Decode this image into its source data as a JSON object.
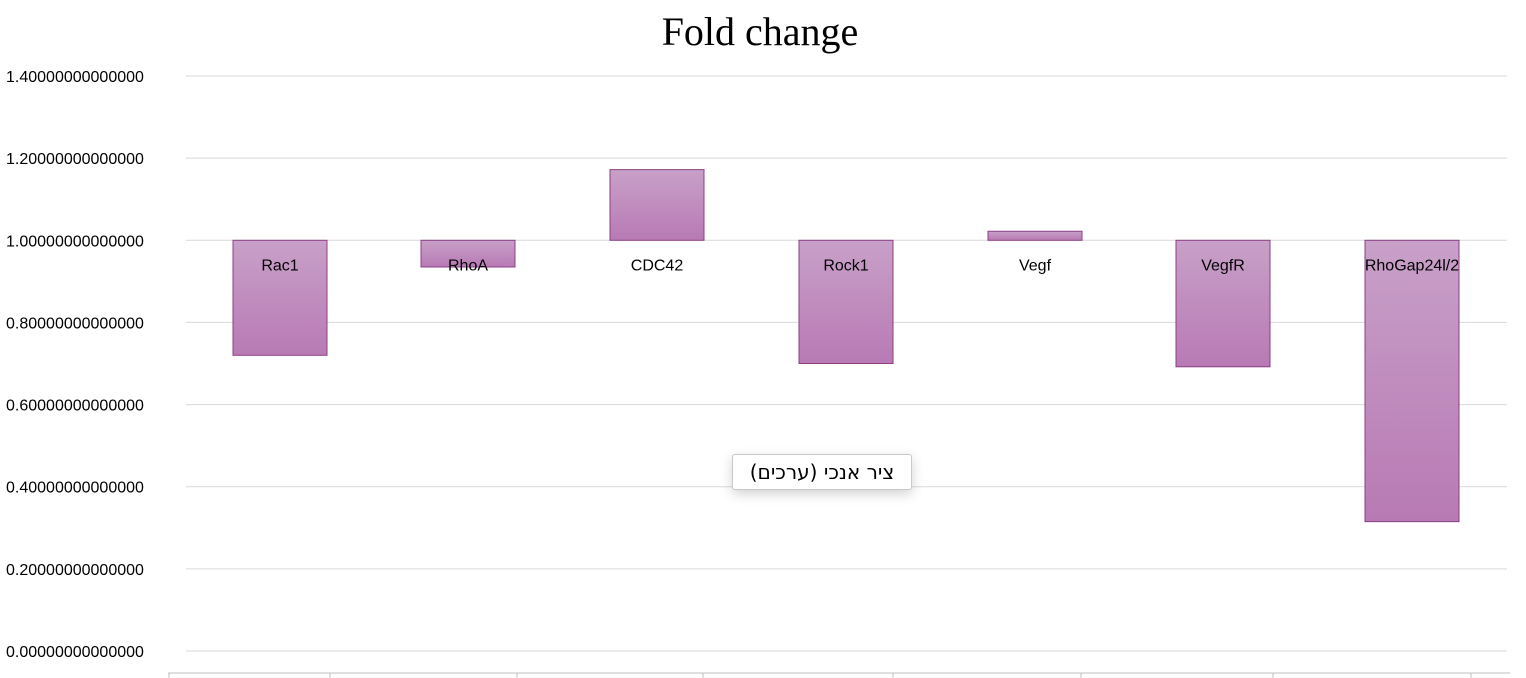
{
  "chart_data": {
    "type": "bar",
    "title": "Fold change",
    "categories": [
      "Rac1",
      "RhoA",
      "CDC42",
      "Rock1",
      "Vegf",
      "VegfR",
      "RhoGap24l/2"
    ],
    "values": [
      0.72,
      0.935,
      1.172,
      0.7,
      1.022,
      0.692,
      0.315
    ],
    "baseline": 1.0,
    "ylim": [
      0,
      1.4
    ],
    "yticks": [
      0,
      0.2,
      0.4,
      0.6,
      0.8,
      1.0,
      1.2,
      1.4
    ],
    "ytick_labels": [
      "0.00000000000000",
      "0.20000000000000",
      "0.40000000000000",
      "0.60000000000000",
      "0.80000000000000",
      "1.00000000000000",
      "1.20000000000000",
      "1.40000000000000"
    ],
    "grid": true,
    "legend": "none",
    "bar_color_top": "#c8a0c8",
    "bar_color_bottom": "#b87ab4",
    "bar_border": "#8a3f86"
  },
  "tooltip": {
    "text": "ציר אנכי (ערכים)"
  }
}
